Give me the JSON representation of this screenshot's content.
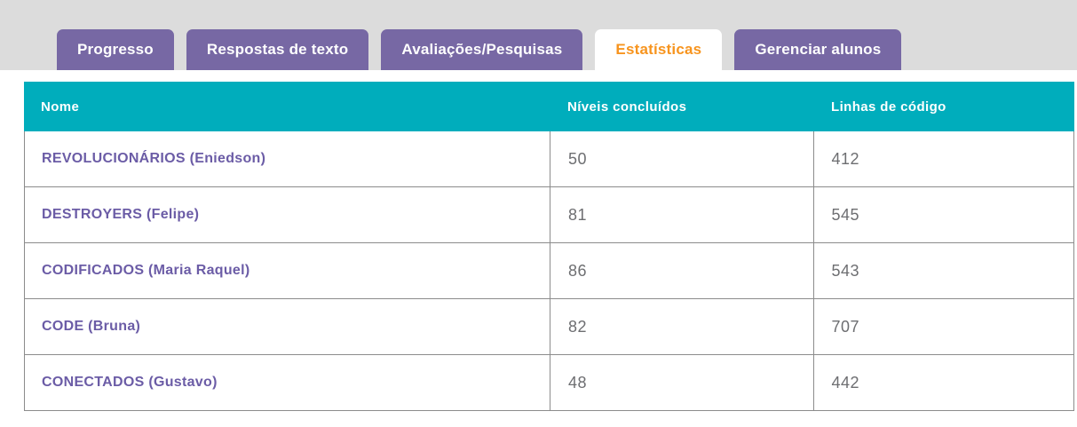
{
  "tabs": [
    {
      "label": "Progresso",
      "active": false
    },
    {
      "label": "Respostas de texto",
      "active": false
    },
    {
      "label": "Avaliações/Pesquisas",
      "active": false
    },
    {
      "label": "Estatísticas",
      "active": true
    },
    {
      "label": "Gerenciar alunos",
      "active": false
    }
  ],
  "table": {
    "columns": [
      "Nome",
      "Níveis concluídos",
      "Linhas de código"
    ],
    "rows": [
      {
        "name": "REVOLUCIONÁRIOS (Eniedson)",
        "levels": "50",
        "lines": "412"
      },
      {
        "name": "DESTROYERS (Felipe)",
        "levels": "81",
        "lines": "545"
      },
      {
        "name": "CODIFICADOS (Maria Raquel)",
        "levels": "86",
        "lines": "543"
      },
      {
        "name": "CODE (Bruna)",
        "levels": "82",
        "lines": "707"
      },
      {
        "name": "CONECTADOS (Gustavo)",
        "levels": "48",
        "lines": "442"
      }
    ]
  },
  "colors": {
    "top_band_gray": "#dcdcdc",
    "tab_purple": "#7768a4",
    "active_tab_text_orange": "#f7941e",
    "table_header_teal": "#00adbc",
    "section_name_purple": "#6b5ca6",
    "value_gray": "#6d6e71",
    "border_gray": "#8c8c8c"
  }
}
